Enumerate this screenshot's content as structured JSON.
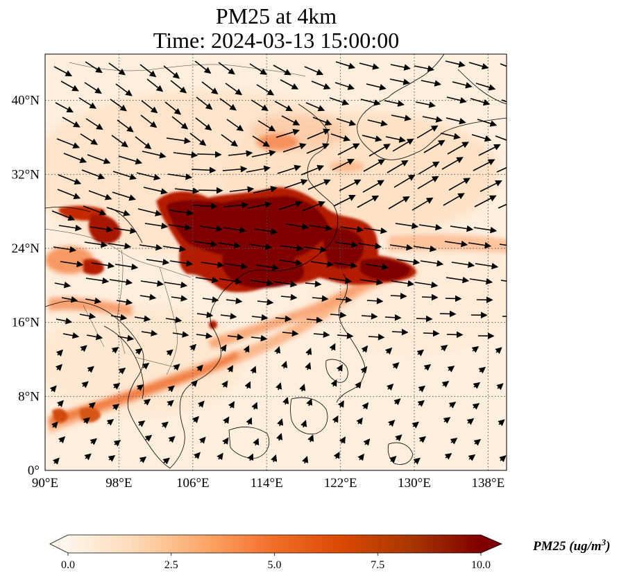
{
  "title": {
    "line1": "PM25 at 4km",
    "line2": "Time: 2024-03-13 15:00:00"
  },
  "map": {
    "lon_range": [
      90,
      140
    ],
    "lat_range": [
      0,
      45
    ],
    "lon_ticks": [
      {
        "value": 90,
        "label": "90°E"
      },
      {
        "value": 98,
        "label": "98°E"
      },
      {
        "value": 106,
        "label": "106°E"
      },
      {
        "value": 114,
        "label": "114°E"
      },
      {
        "value": 122,
        "label": "122°E"
      },
      {
        "value": 130,
        "label": "130°E"
      },
      {
        "value": 138,
        "label": "138°E"
      }
    ],
    "lat_ticks": [
      {
        "value": 0,
        "label": "0°"
      },
      {
        "value": 8,
        "label": "8°N"
      },
      {
        "value": 16,
        "label": "16°N"
      },
      {
        "value": 24,
        "label": "24°N"
      },
      {
        "value": 32,
        "label": "32°N"
      },
      {
        "value": 40,
        "label": "40°N"
      }
    ],
    "gridlines": true,
    "plume_color_max": "#7f0000",
    "background_color": "#fff5eb"
  },
  "colorbar": {
    "min": 0.0,
    "max": 10.0,
    "ticks": [
      "0.0",
      "2.5",
      "5.0",
      "7.5",
      "10.0"
    ],
    "extend": "both",
    "colormap": [
      "#fff5eb",
      "#fdd9b4",
      "#fda668",
      "#f26d27",
      "#d94801",
      "#a63603",
      "#7f0000"
    ],
    "label": "PM25 (ug/m^3)"
  }
}
